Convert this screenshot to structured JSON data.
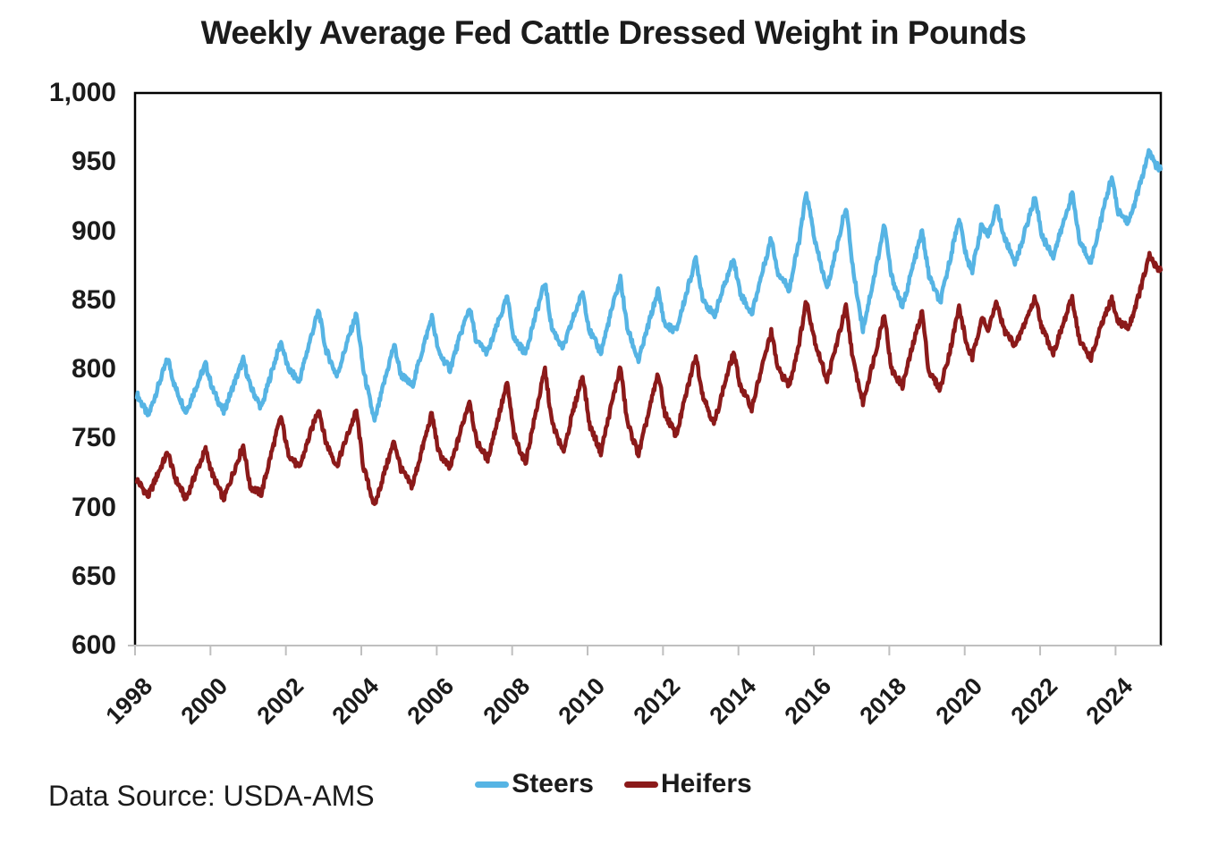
{
  "chart_data": {
    "type": "line",
    "title": "Weekly Average Fed Cattle Dressed Weight in Pounds",
    "source_note": "Data Source: USDA-AMS",
    "xlabel": "",
    "ylabel": "",
    "x_unit": "year (weekly observations)",
    "xlim": [
      1998,
      2025.2
    ],
    "ylim": [
      600,
      1000
    ],
    "grid": false,
    "legend_position": "bottom-center",
    "axis_colors": {
      "frame": "#000000",
      "bottom_axis": "#bfbfbf"
    },
    "yticks": {
      "values": [
        1000,
        950,
        900,
        850,
        800,
        750,
        700,
        650,
        600
      ],
      "labels": [
        "1,000",
        "950",
        "900",
        "850",
        "800",
        "750",
        "700",
        "650",
        "600"
      ]
    },
    "xticks": {
      "values": [
        1998,
        2000,
        2002,
        2004,
        2006,
        2008,
        2010,
        2012,
        2014,
        2016,
        2018,
        2020,
        2022,
        2024
      ],
      "labels": [
        "1998",
        "2000",
        "2002",
        "2004",
        "2006",
        "2008",
        "2010",
        "2012",
        "2014",
        "2016",
        "2018",
        "2020",
        "2022",
        "2024"
      ]
    },
    "series": [
      {
        "name": "Steers",
        "color": "#56B4E4",
        "points": [
          [
            1998.05,
            782
          ],
          [
            1998.35,
            766
          ],
          [
            1998.63,
            789
          ],
          [
            1998.87,
            808
          ],
          [
            1999.05,
            788
          ],
          [
            1999.35,
            769
          ],
          [
            1999.63,
            788
          ],
          [
            1999.87,
            804
          ],
          [
            2000.05,
            786
          ],
          [
            2000.35,
            769
          ],
          [
            2000.63,
            790
          ],
          [
            2000.87,
            807
          ],
          [
            2001.05,
            788
          ],
          [
            2001.35,
            772
          ],
          [
            2001.63,
            799
          ],
          [
            2001.87,
            820
          ],
          [
            2002.05,
            801
          ],
          [
            2002.35,
            791
          ],
          [
            2002.63,
            820
          ],
          [
            2002.87,
            843
          ],
          [
            2003.05,
            815
          ],
          [
            2003.35,
            795
          ],
          [
            2003.63,
            820
          ],
          [
            2003.87,
            840
          ],
          [
            2004.05,
            800
          ],
          [
            2004.35,
            762
          ],
          [
            2004.63,
            793
          ],
          [
            2004.87,
            818
          ],
          [
            2005.05,
            796
          ],
          [
            2005.35,
            788
          ],
          [
            2005.63,
            815
          ],
          [
            2005.87,
            838
          ],
          [
            2006.05,
            812
          ],
          [
            2006.35,
            800
          ],
          [
            2006.63,
            825
          ],
          [
            2006.87,
            845
          ],
          [
            2007.05,
            820
          ],
          [
            2007.35,
            812
          ],
          [
            2007.63,
            834
          ],
          [
            2007.87,
            852
          ],
          [
            2008.05,
            822
          ],
          [
            2008.35,
            812
          ],
          [
            2008.63,
            840
          ],
          [
            2008.87,
            863
          ],
          [
            2009.05,
            830
          ],
          [
            2009.35,
            815
          ],
          [
            2009.63,
            838
          ],
          [
            2009.87,
            856
          ],
          [
            2010.05,
            828
          ],
          [
            2010.35,
            812
          ],
          [
            2010.63,
            842
          ],
          [
            2010.87,
            866
          ],
          [
            2011.05,
            830
          ],
          [
            2011.35,
            806
          ],
          [
            2011.63,
            834
          ],
          [
            2011.87,
            857
          ],
          [
            2012.05,
            832
          ],
          [
            2012.35,
            828
          ],
          [
            2012.63,
            856
          ],
          [
            2012.87,
            880
          ],
          [
            2013.05,
            852
          ],
          [
            2013.35,
            838
          ],
          [
            2013.63,
            861
          ],
          [
            2013.87,
            880
          ],
          [
            2014.05,
            855
          ],
          [
            2014.35,
            840
          ],
          [
            2014.63,
            870
          ],
          [
            2014.87,
            895
          ],
          [
            2015.05,
            870
          ],
          [
            2015.35,
            858
          ],
          [
            2015.63,
            896
          ],
          [
            2015.8,
            928
          ],
          [
            2016.05,
            890
          ],
          [
            2016.35,
            858
          ],
          [
            2016.63,
            891
          ],
          [
            2016.85,
            918
          ],
          [
            2017.05,
            870
          ],
          [
            2017.3,
            829
          ],
          [
            2017.63,
            871
          ],
          [
            2017.87,
            905
          ],
          [
            2018.05,
            868
          ],
          [
            2018.35,
            845
          ],
          [
            2018.63,
            875
          ],
          [
            2018.87,
            900
          ],
          [
            2019.05,
            868
          ],
          [
            2019.35,
            848
          ],
          [
            2019.63,
            882
          ],
          [
            2019.85,
            910
          ],
          [
            2020.05,
            880
          ],
          [
            2020.2,
            872
          ],
          [
            2020.45,
            905
          ],
          [
            2020.6,
            895
          ],
          [
            2020.85,
            918
          ],
          [
            2021.05,
            895
          ],
          [
            2021.35,
            877
          ],
          [
            2021.63,
            903
          ],
          [
            2021.87,
            925
          ],
          [
            2022.05,
            896
          ],
          [
            2022.35,
            882
          ],
          [
            2022.63,
            907
          ],
          [
            2022.85,
            928
          ],
          [
            2023.05,
            892
          ],
          [
            2023.35,
            878
          ],
          [
            2023.63,
            910
          ],
          [
            2023.9,
            940
          ],
          [
            2024.05,
            915
          ],
          [
            2024.35,
            906
          ],
          [
            2024.63,
            932
          ],
          [
            2024.9,
            958
          ],
          [
            2025.05,
            948
          ],
          [
            2025.2,
            945
          ]
        ]
      },
      {
        "name": "Heifers",
        "color": "#8B1A1A",
        "points": [
          [
            1998.05,
            720
          ],
          [
            1998.35,
            708
          ],
          [
            1998.63,
            726
          ],
          [
            1998.87,
            740
          ],
          [
            1999.05,
            722
          ],
          [
            1999.35,
            706
          ],
          [
            1999.63,
            726
          ],
          [
            1999.87,
            742
          ],
          [
            2000.05,
            724
          ],
          [
            2000.35,
            706
          ],
          [
            2000.63,
            727
          ],
          [
            2000.87,
            745
          ],
          [
            2001.05,
            715
          ],
          [
            2001.35,
            710
          ],
          [
            2001.63,
            741
          ],
          [
            2001.87,
            766
          ],
          [
            2002.05,
            740
          ],
          [
            2002.35,
            728
          ],
          [
            2002.63,
            752
          ],
          [
            2002.87,
            772
          ],
          [
            2003.05,
            748
          ],
          [
            2003.35,
            730
          ],
          [
            2003.63,
            752
          ],
          [
            2003.87,
            770
          ],
          [
            2004.05,
            730
          ],
          [
            2004.35,
            701
          ],
          [
            2004.63,
            727
          ],
          [
            2004.87,
            748
          ],
          [
            2005.05,
            728
          ],
          [
            2005.35,
            715
          ],
          [
            2005.63,
            744
          ],
          [
            2005.87,
            768
          ],
          [
            2006.05,
            740
          ],
          [
            2006.35,
            728
          ],
          [
            2006.63,
            755
          ],
          [
            2006.87,
            778
          ],
          [
            2007.05,
            748
          ],
          [
            2007.35,
            735
          ],
          [
            2007.63,
            765
          ],
          [
            2007.87,
            790
          ],
          [
            2008.05,
            752
          ],
          [
            2008.35,
            732
          ],
          [
            2008.63,
            769
          ],
          [
            2008.87,
            800
          ],
          [
            2009.05,
            762
          ],
          [
            2009.35,
            740
          ],
          [
            2009.63,
            771
          ],
          [
            2009.87,
            796
          ],
          [
            2010.05,
            760
          ],
          [
            2010.35,
            740
          ],
          [
            2010.63,
            774
          ],
          [
            2010.87,
            802
          ],
          [
            2011.05,
            762
          ],
          [
            2011.35,
            738
          ],
          [
            2011.63,
            770
          ],
          [
            2011.87,
            797
          ],
          [
            2012.05,
            768
          ],
          [
            2012.35,
            752
          ],
          [
            2012.63,
            784
          ],
          [
            2012.87,
            810
          ],
          [
            2013.05,
            782
          ],
          [
            2013.35,
            760
          ],
          [
            2013.63,
            789
          ],
          [
            2013.87,
            812
          ],
          [
            2014.05,
            788
          ],
          [
            2014.35,
            772
          ],
          [
            2014.63,
            802
          ],
          [
            2014.87,
            827
          ],
          [
            2015.05,
            800
          ],
          [
            2015.35,
            788
          ],
          [
            2015.63,
            822
          ],
          [
            2015.8,
            850
          ],
          [
            2016.05,
            818
          ],
          [
            2016.35,
            792
          ],
          [
            2016.63,
            821
          ],
          [
            2016.85,
            845
          ],
          [
            2017.05,
            805
          ],
          [
            2017.3,
            776
          ],
          [
            2017.63,
            812
          ],
          [
            2017.87,
            841
          ],
          [
            2018.05,
            800
          ],
          [
            2018.35,
            788
          ],
          [
            2018.63,
            818
          ],
          [
            2018.87,
            842
          ],
          [
            2019.05,
            798
          ],
          [
            2019.35,
            786
          ],
          [
            2019.63,
            816
          ],
          [
            2019.85,
            845
          ],
          [
            2020.05,
            818
          ],
          [
            2020.2,
            808
          ],
          [
            2020.45,
            838
          ],
          [
            2020.6,
            828
          ],
          [
            2020.85,
            848
          ],
          [
            2021.05,
            828
          ],
          [
            2021.35,
            817
          ],
          [
            2021.63,
            836
          ],
          [
            2021.87,
            852
          ],
          [
            2022.05,
            830
          ],
          [
            2022.35,
            812
          ],
          [
            2022.63,
            834
          ],
          [
            2022.85,
            852
          ],
          [
            2023.05,
            820
          ],
          [
            2023.35,
            808
          ],
          [
            2023.63,
            832
          ],
          [
            2023.9,
            851
          ],
          [
            2024.05,
            835
          ],
          [
            2024.35,
            830
          ],
          [
            2024.63,
            855
          ],
          [
            2024.9,
            882
          ],
          [
            2025.05,
            875
          ],
          [
            2025.2,
            872
          ]
        ]
      }
    ]
  }
}
